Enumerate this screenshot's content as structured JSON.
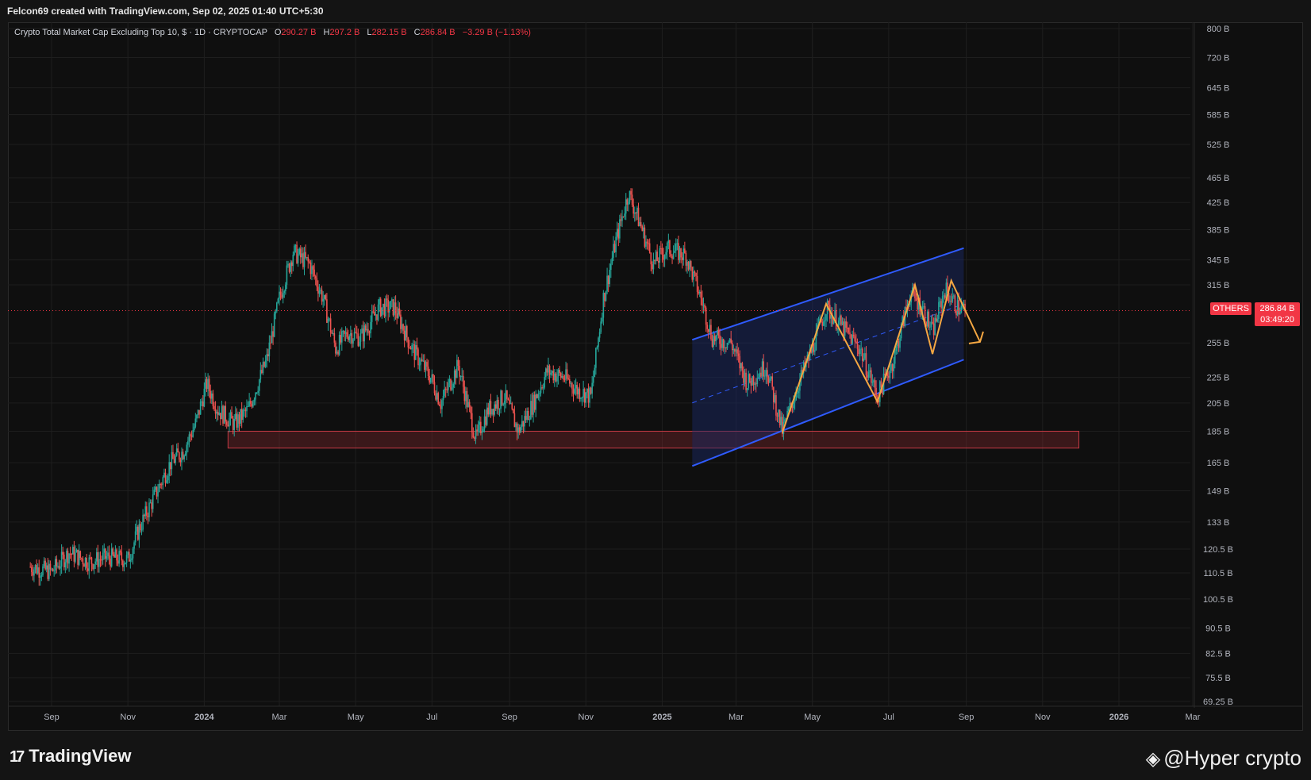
{
  "header": {
    "attribution": "Felcon69 created with TradingView.com, Sep 02, 2025 01:40 UTC+5:30"
  },
  "legend": {
    "title": "Crypto Total Market Cap Excluding Top 10, $ · 1D · CRYPTOCAP",
    "open_label": "O",
    "open": "290.27 B",
    "high_label": "H",
    "high": "297.2 B",
    "low_label": "L",
    "low": "282.15 B",
    "close_label": "C",
    "close": "286.84 B",
    "change": "−3.29 B (−1.13%)"
  },
  "price_tag": {
    "symbol": "OTHERS",
    "price": "286.84 B",
    "countdown": "03:49:20",
    "color": "#f23645"
  },
  "colors": {
    "up": "#26a69a",
    "down": "#ef5350",
    "channel": "#2f5bff",
    "zigzag": "#f5a742",
    "zone": "#8b2a30"
  },
  "footer": {
    "brand": "TradingView",
    "watermark": "@Hyper crypto"
  },
  "icons": [
    "tradingview-logo-icon",
    "binance-diamond-icon"
  ],
  "chart_data": {
    "type": "candlestick",
    "title": "Crypto Total Market Cap Excluding Top 10, $ · 1D · CRYPTOCAP",
    "y_scale": "log",
    "y_ticks": [
      "800 B",
      "720 B",
      "645 B",
      "585 B",
      "525 B",
      "465 B",
      "425 B",
      "385 B",
      "345 B",
      "315 B",
      "255 B",
      "225 B",
      "205 B",
      "185 B",
      "165 B",
      "149 B",
      "133 B",
      "120.5 B",
      "110.5 B",
      "100.5 B",
      "90.5 B",
      "82.5 B",
      "75.5 B",
      "69.25 B"
    ],
    "x_ticks": [
      "Sep",
      "Nov",
      "2024",
      "Mar",
      "May",
      "Jul",
      "Sep",
      "Nov",
      "2025",
      "Mar",
      "May",
      "Jul",
      "Sep",
      "Nov",
      "2026",
      "Mar"
    ],
    "current_price": 286.84,
    "series": [
      {
        "values": [
          {
            "date": "2023-08-15",
            "close": 113
          },
          {
            "date": "2023-09-01",
            "close": 111
          },
          {
            "date": "2023-09-15",
            "close": 119
          },
          {
            "date": "2023-10-01",
            "close": 115
          },
          {
            "date": "2023-10-15",
            "close": 117
          },
          {
            "date": "2023-11-01",
            "close": 116
          },
          {
            "date": "2023-11-10",
            "close": 130
          },
          {
            "date": "2023-11-25",
            "close": 150
          },
          {
            "date": "2023-12-05",
            "close": 165
          },
          {
            "date": "2023-12-15",
            "close": 172
          },
          {
            "date": "2023-12-25",
            "close": 190
          },
          {
            "date": "2024-01-03",
            "close": 220
          },
          {
            "date": "2024-01-12",
            "close": 200
          },
          {
            "date": "2024-01-25",
            "close": 190
          },
          {
            "date": "2024-02-05",
            "close": 200
          },
          {
            "date": "2024-02-20",
            "close": 240
          },
          {
            "date": "2024-03-01",
            "close": 300
          },
          {
            "date": "2024-03-12",
            "close": 355
          },
          {
            "date": "2024-03-25",
            "close": 340
          },
          {
            "date": "2024-04-05",
            "close": 300
          },
          {
            "date": "2024-04-15",
            "close": 250
          },
          {
            "date": "2024-04-25",
            "close": 265
          },
          {
            "date": "2024-05-05",
            "close": 260
          },
          {
            "date": "2024-05-20",
            "close": 290
          },
          {
            "date": "2024-06-01",
            "close": 290
          },
          {
            "date": "2024-06-15",
            "close": 250
          },
          {
            "date": "2024-06-30",
            "close": 225
          },
          {
            "date": "2024-07-08",
            "close": 205
          },
          {
            "date": "2024-07-22",
            "close": 235
          },
          {
            "date": "2024-08-05",
            "close": 180
          },
          {
            "date": "2024-08-15",
            "close": 200
          },
          {
            "date": "2024-08-28",
            "close": 210
          },
          {
            "date": "2024-09-08",
            "close": 185
          },
          {
            "date": "2024-09-20",
            "close": 205
          },
          {
            "date": "2024-10-01",
            "close": 230
          },
          {
            "date": "2024-10-15",
            "close": 225
          },
          {
            "date": "2024-10-25",
            "close": 215
          },
          {
            "date": "2024-11-05",
            "close": 210
          },
          {
            "date": "2024-11-15",
            "close": 300
          },
          {
            "date": "2024-11-25",
            "close": 370
          },
          {
            "date": "2024-12-05",
            "close": 440
          },
          {
            "date": "2024-12-15",
            "close": 390
          },
          {
            "date": "2024-12-25",
            "close": 340
          },
          {
            "date": "2025-01-05",
            "close": 360
          },
          {
            "date": "2025-01-20",
            "close": 350
          },
          {
            "date": "2025-02-01",
            "close": 300
          },
          {
            "date": "2025-02-10",
            "close": 260
          },
          {
            "date": "2025-02-25",
            "close": 255
          },
          {
            "date": "2025-03-10",
            "close": 220
          },
          {
            "date": "2025-03-25",
            "close": 235
          },
          {
            "date": "2025-04-07",
            "close": 185
          },
          {
            "date": "2025-04-20",
            "close": 220
          },
          {
            "date": "2025-05-01",
            "close": 250
          },
          {
            "date": "2025-05-12",
            "close": 290
          },
          {
            "date": "2025-05-25",
            "close": 270
          },
          {
            "date": "2025-06-08",
            "close": 250
          },
          {
            "date": "2025-06-22",
            "close": 210
          },
          {
            "date": "2025-07-05",
            "close": 240
          },
          {
            "date": "2025-07-18",
            "close": 305
          },
          {
            "date": "2025-07-28",
            "close": 290
          },
          {
            "date": "2025-08-05",
            "close": 265
          },
          {
            "date": "2025-08-15",
            "close": 310
          },
          {
            "date": "2025-08-25",
            "close": 290
          },
          {
            "date": "2025-09-01",
            "close": 286.84
          }
        ]
      }
    ],
    "annotations": {
      "support_zone": {
        "low": 174,
        "high": 185,
        "from": "2024-01-20",
        "to": "2025-11-30"
      },
      "channel": {
        "upper": [
          {
            "date": "2025-01-25",
            "value": 258
          },
          {
            "date": "2025-08-30",
            "value": 360
          }
        ],
        "lower": [
          {
            "date": "2025-01-25",
            "value": 163
          },
          {
            "date": "2025-08-30",
            "value": 240
          }
        ]
      },
      "zigzag": [
        {
          "date": "2025-04-07",
          "value": 184
        },
        {
          "date": "2025-05-12",
          "value": 294
        },
        {
          "date": "2025-06-22",
          "value": 206
        },
        {
          "date": "2025-07-22",
          "value": 315
        },
        {
          "date": "2025-08-05",
          "value": 245
        },
        {
          "date": "2025-08-20",
          "value": 320
        },
        {
          "date": "2025-09-12",
          "value": 256
        }
      ]
    },
    "grid": true,
    "legend": "top-left"
  }
}
